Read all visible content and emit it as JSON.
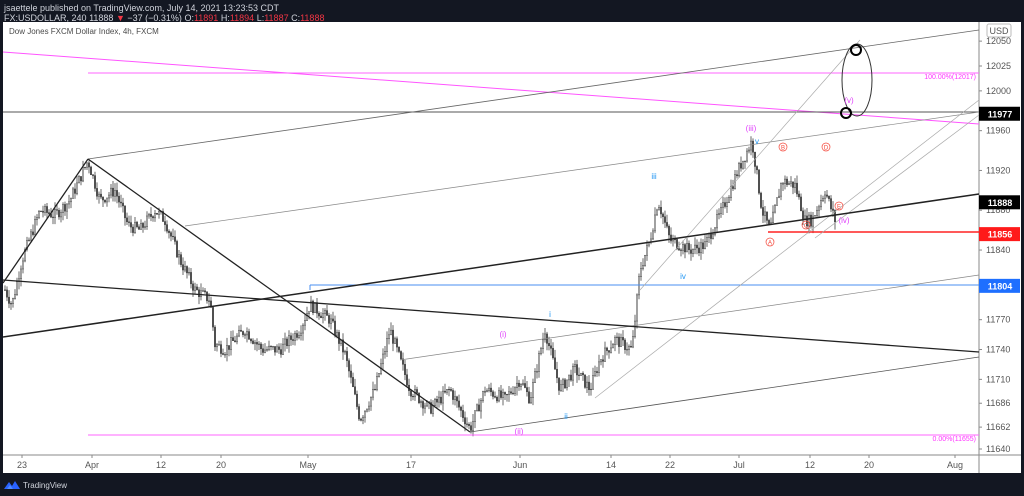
{
  "header": {
    "published": "jsaettele published on TradingView.com, July 14, 2021 13:23:53 CDT",
    "symbol": "FX:USDOLLAR, 240",
    "last": "11888",
    "change_arrow": "▼",
    "change": "−37 (−0.31%)",
    "o_label": "O:",
    "o": "11891",
    "h_label": "H:",
    "h": "11894",
    "l_label": "L:",
    "l": "11887",
    "c_label": "C:",
    "c": "11888"
  },
  "chart_title": "Dow Jones FXCM Dollar Index, 4h, FXCM",
  "currency": "USD",
  "footer": {
    "brand": "TradingView"
  },
  "colors": {
    "red": "#f23645",
    "blue": "#2962ff",
    "magenta": "#ff00ff",
    "pink_label": "#e040fb",
    "wave_blue": "#2196f3",
    "bg": "#131722"
  },
  "chart_data": {
    "type": "candlestick",
    "title": "Dow Jones FXCM Dollar Index, 4h, FXCM",
    "symbol": "FX:USDOLLAR",
    "interval": "240",
    "ylabel": "USD",
    "ylim": [
      11630,
      12050
    ],
    "y_ticks": [
      "12050",
      "12025",
      "12000",
      "11977",
      "11960",
      "11920",
      "11888",
      "11880",
      "11856",
      "11840",
      "11804",
      "11770",
      "11740",
      "11710",
      "11686",
      "11662",
      "11640"
    ],
    "x_ticks": [
      "23",
      "Apr",
      "12",
      "20",
      "May",
      "17",
      "Jun",
      "14",
      "22",
      "Jul",
      "12",
      "20",
      "Aug"
    ],
    "price_labels": [
      {
        "value": "11977",
        "style": "black"
      },
      {
        "value": "11888",
        "style": "black"
      },
      {
        "value": "11856",
        "style": "red"
      },
      {
        "value": "11804",
        "style": "blue"
      }
    ],
    "fib_levels": [
      {
        "label": "100.00%(12017)",
        "value": 12017
      },
      {
        "label": "0.00%(11655)",
        "value": 11655
      }
    ],
    "wave_labels": [
      {
        "text": "(i)",
        "color": "magenta"
      },
      {
        "text": "(ii)",
        "color": "magenta"
      },
      {
        "text": "(iii)",
        "color": "magenta"
      },
      {
        "text": "(iv)",
        "color": "magenta"
      },
      {
        "text": "(v)",
        "color": "magenta"
      },
      {
        "text": "i",
        "color": "blue"
      },
      {
        "text": "ii",
        "color": "blue"
      },
      {
        "text": "iii",
        "color": "blue"
      },
      {
        "text": "iv",
        "color": "blue"
      },
      {
        "text": "v",
        "color": "blue"
      },
      {
        "text": "A",
        "color": "red"
      },
      {
        "text": "B",
        "color": "red"
      },
      {
        "text": "C",
        "color": "red"
      },
      {
        "text": "D",
        "color": "red"
      },
      {
        "text": "E",
        "color": "red"
      }
    ],
    "key_prices": {
      "start_approx": 11790,
      "march_high": 11930,
      "may_low": 11655,
      "july_high": 11955,
      "last": 11888
    }
  }
}
